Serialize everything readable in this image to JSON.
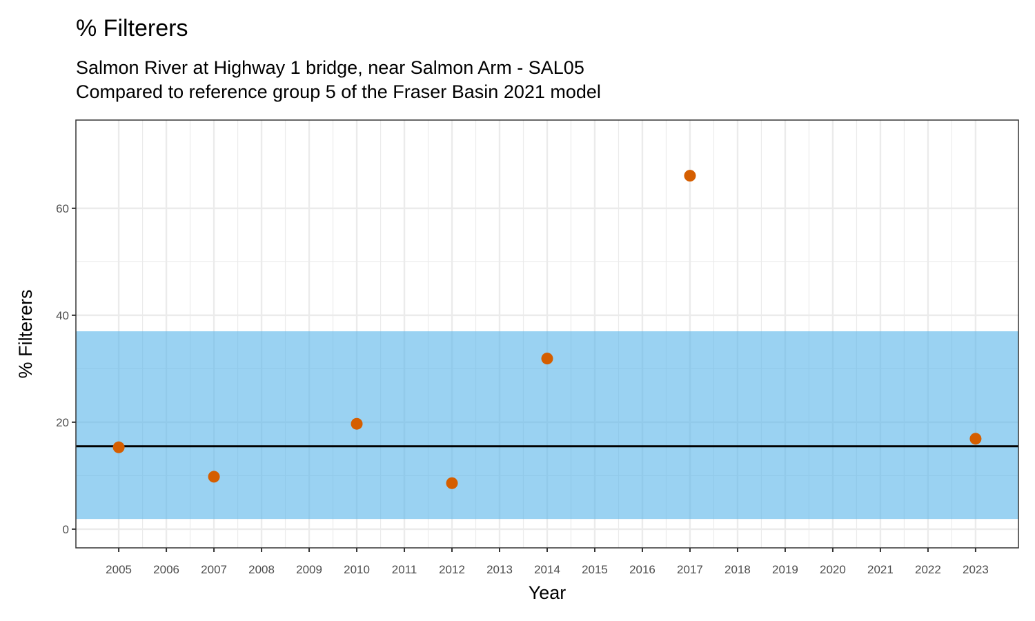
{
  "chart_data": {
    "type": "scatter",
    "title": "% Filterers",
    "subtitle": [
      "Salmon River at Highway 1 bridge, near Salmon Arm - SAL05",
      "Compared to reference group 5 of the Fraser Basin 2021 model"
    ],
    "x_label": "Year",
    "y_label": "% Filterers",
    "x": [
      2005,
      2007,
      2010,
      2012,
      2014,
      2017,
      2023
    ],
    "values": [
      15.3,
      9.8,
      19.7,
      8.6,
      31.9,
      66.1,
      16.9
    ],
    "color": "#d55e00",
    "reference_range": [
      1.9,
      37.0
    ],
    "reference_color": "#56b4e9",
    "reference_median": 15.5,
    "median_color": "#000000",
    "xlim": [
      2004.1,
      2023.9
    ],
    "ylim": [
      -3.5,
      76.5
    ],
    "xticks": [
      2005,
      2006,
      2007,
      2008,
      2009,
      2010,
      2011,
      2012,
      2013,
      2014,
      2015,
      2016,
      2017,
      2018,
      2019,
      2020,
      2021,
      2022,
      2023
    ],
    "yticks": [
      0,
      20,
      40,
      60
    ],
    "grid": true
  }
}
